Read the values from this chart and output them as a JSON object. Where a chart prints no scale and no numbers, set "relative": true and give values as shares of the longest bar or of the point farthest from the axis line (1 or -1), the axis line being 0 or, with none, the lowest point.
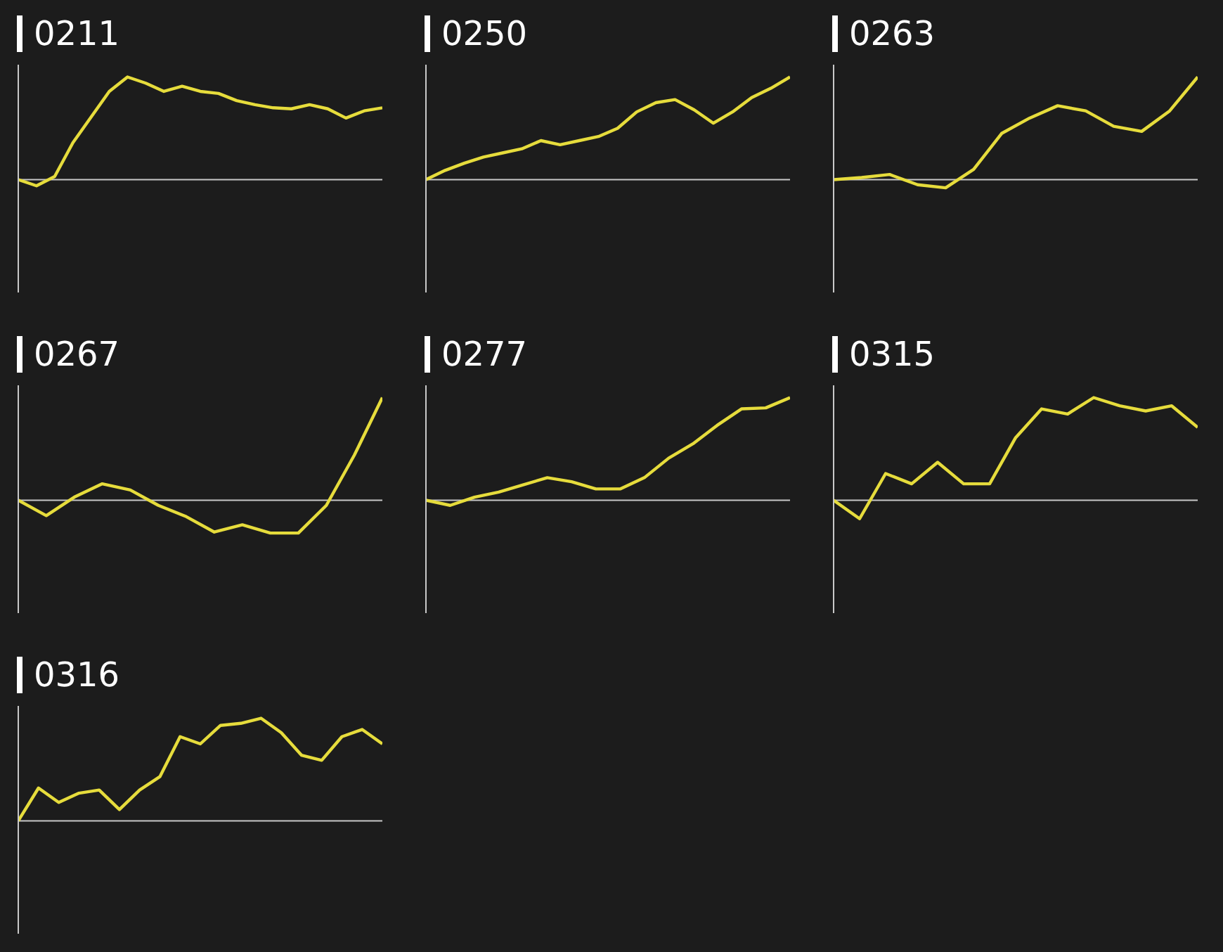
{
  "chart_data": [
    {
      "type": "line",
      "title": "0211",
      "relative": true,
      "color": "#e6dc3c",
      "categories": [
        null,
        null,
        null,
        null,
        null,
        null,
        null,
        null,
        null,
        null,
        null,
        null,
        null,
        null,
        null,
        null,
        null,
        null,
        null,
        null,
        null
      ],
      "values": [
        0,
        -0.06,
        0.03,
        0.36,
        0.61,
        0.86,
        1,
        0.94,
        0.86,
        0.91,
        0.86,
        0.84,
        0.77,
        0.73,
        0.7,
        0.69,
        0.73,
        0.69,
        0.6,
        0.67,
        0.7
      ]
    },
    {
      "type": "line",
      "title": "0250",
      "relative": true,
      "color": "#e6dc3c",
      "categories": [
        null,
        null,
        null,
        null,
        null,
        null,
        null,
        null,
        null,
        null,
        null,
        null,
        null,
        null,
        null,
        null,
        null,
        null,
        null,
        null
      ],
      "values": [
        0,
        0.09,
        0.16,
        0.22,
        0.26,
        0.3,
        0.38,
        0.34,
        0.38,
        0.42,
        0.5,
        0.66,
        0.75,
        0.78,
        0.68,
        0.55,
        0.66,
        0.8,
        0.89,
        1
      ]
    },
    {
      "type": "line",
      "title": "0263",
      "relative": true,
      "color": "#e6dc3c",
      "categories": [
        null,
        null,
        null,
        null,
        null,
        null,
        null,
        null,
        null,
        null,
        null,
        null,
        null,
        null
      ],
      "values": [
        0,
        0.02,
        0.05,
        -0.05,
        -0.08,
        0.1,
        0.45,
        0.6,
        0.72,
        0.67,
        0.52,
        0.47,
        0.67,
        1
      ]
    },
    {
      "type": "line",
      "title": "0267",
      "relative": true,
      "color": "#e6dc3c",
      "categories": [
        null,
        null,
        null,
        null,
        null,
        null,
        null,
        null,
        null,
        null,
        null,
        null,
        null,
        null
      ],
      "values": [
        0,
        -0.15,
        0.03,
        0.16,
        0.1,
        -0.05,
        -0.16,
        -0.31,
        -0.24,
        -0.32,
        -0.32,
        -0.05,
        0.44,
        1
      ]
    },
    {
      "type": "line",
      "title": "0277",
      "relative": true,
      "color": "#e6dc3c",
      "categories": [
        null,
        null,
        null,
        null,
        null,
        null,
        null,
        null,
        null,
        null,
        null,
        null,
        null,
        null,
        null,
        null
      ],
      "values": [
        0,
        -0.05,
        0.03,
        0.08,
        0.15,
        0.22,
        0.18,
        0.11,
        0.11,
        0.22,
        0.41,
        0.55,
        0.73,
        0.89,
        0.9,
        1
      ]
    },
    {
      "type": "line",
      "title": "0315",
      "relative": true,
      "color": "#e6dc3c",
      "categories": [
        null,
        null,
        null,
        null,
        null,
        null,
        null,
        null,
        null,
        null,
        null,
        null,
        null,
        null,
        null
      ],
      "values": [
        0,
        -0.18,
        0.26,
        0.16,
        0.37,
        0.16,
        0.16,
        0.61,
        0.89,
        0.84,
        1,
        0.92,
        0.87,
        0.92,
        0.71
      ]
    },
    {
      "type": "line",
      "title": "0316",
      "relative": true,
      "color": "#e6dc3c",
      "categories": [
        null,
        null,
        null,
        null,
        null,
        null,
        null,
        null,
        null,
        null,
        null,
        null,
        null,
        null,
        null,
        null,
        null,
        null,
        null
      ],
      "values": [
        0,
        0.32,
        0.18,
        0.27,
        0.3,
        0.11,
        0.3,
        0.43,
        0.82,
        0.75,
        0.93,
        0.95,
        1,
        0.86,
        0.64,
        0.59,
        0.82,
        0.89,
        0.75
      ]
    }
  ]
}
